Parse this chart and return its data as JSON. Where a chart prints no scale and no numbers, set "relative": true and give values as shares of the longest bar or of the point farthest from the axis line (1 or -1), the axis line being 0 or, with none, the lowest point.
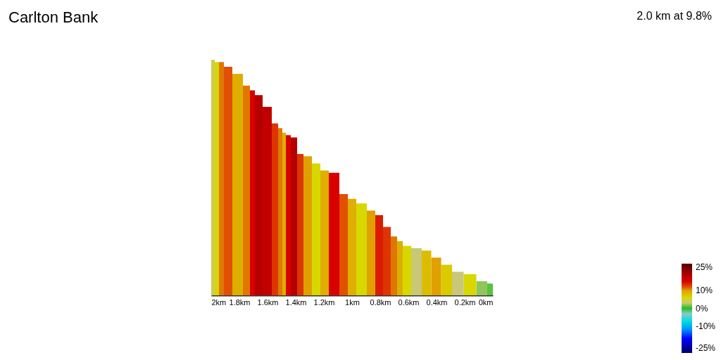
{
  "chart_data": {
    "type": "bar",
    "title": "Carlton Bank",
    "subtitle": "2.0 km at 9.8%",
    "x": [
      0.01,
      0.07,
      0.165,
      0.25,
      0.33,
      0.405,
      0.47,
      0.54,
      0.62,
      0.66,
      0.7,
      0.75,
      0.81,
      0.86,
      0.93,
      1.01,
      1.05,
      1.13,
      1.2,
      1.25,
      1.32,
      1.37,
      1.41,
      1.46,
      1.48,
      1.51,
      1.54,
      1.6,
      1.67,
      1.71,
      1.74,
      1.81,
      1.89,
      1.93,
      1.96,
      1.99
    ],
    "values": [
      0.05,
      0.06,
      0.09,
      0.1,
      0.13,
      0.16,
      0.19,
      0.2,
      0.21,
      0.23,
      0.25,
      0.29,
      0.34,
      0.36,
      0.39,
      0.41,
      0.43,
      0.52,
      0.53,
      0.56,
      0.59,
      0.6,
      0.67,
      0.68,
      0.69,
      0.71,
      0.73,
      0.8,
      0.85,
      0.87,
      0.89,
      0.94,
      0.97,
      0.99,
      0.99,
      1
    ],
    "cvalues": [
      1,
      2,
      6,
      3,
      7,
      10,
      8,
      3,
      6,
      9,
      11,
      13,
      14,
      10,
      6,
      9,
      12,
      15,
      9,
      6,
      10,
      13,
      18,
      15,
      9,
      11,
      13,
      17,
      18,
      15,
      11,
      9,
      12,
      11,
      6,
      4
    ],
    "relative": true,
    "xlim": [
      2,
      0
    ],
    "xticks": [
      {
        "value": 0,
        "label": "0km"
      },
      {
        "value": 0.2,
        "label": "0.2km"
      },
      {
        "value": 0.4,
        "label": "0.4km"
      },
      {
        "value": 0.6,
        "label": "0.6km"
      },
      {
        "value": 0.8,
        "label": "0.8km"
      },
      {
        "value": 1,
        "label": "1km"
      },
      {
        "value": 1.2,
        "label": "1.2km"
      },
      {
        "value": 1.4,
        "label": "1.4km"
      },
      {
        "value": 1.6,
        "label": "1.6km"
      },
      {
        "value": 1.8,
        "label": "1.8km"
      },
      {
        "value": 2,
        "label": "2km"
      }
    ],
    "clim": [
      -25,
      25
    ],
    "cticks": [
      {
        "value": 25,
        "label": "25%"
      },
      {
        "value": 10,
        "label": "10%"
      },
      {
        "value": 0,
        "label": "0%"
      },
      {
        "value": -10,
        "label": "-10%"
      },
      {
        "value": -25,
        "label": "-25%"
      }
    ]
  }
}
